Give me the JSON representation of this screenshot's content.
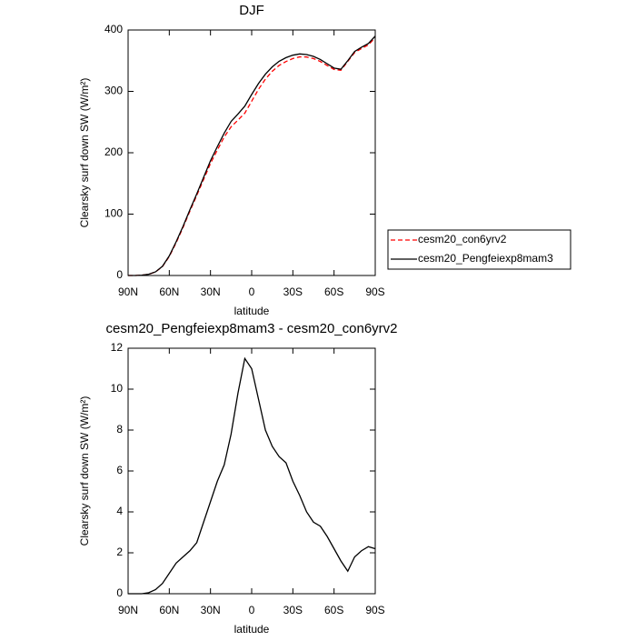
{
  "chart_data": [
    {
      "type": "line",
      "title": "DJF",
      "x_label": "latitude",
      "y_label": "Clearsky surf down SW (W/m²)",
      "x": [
        90,
        85,
        80,
        75,
        70,
        65,
        60,
        55,
        50,
        45,
        40,
        35,
        30,
        25,
        20,
        15,
        10,
        5,
        0,
        -5,
        -10,
        -15,
        -20,
        -25,
        -30,
        -35,
        -40,
        -45,
        -50,
        -55,
        -60,
        -65,
        -70,
        -75,
        -80,
        -85,
        -90
      ],
      "series": [
        {
          "name": "cesm20_con6yrv2",
          "color": "#ff0000",
          "style": "dashed",
          "values": [
            0,
            0,
            0.5,
            2,
            5.8,
            14.5,
            31,
            53.5,
            78.2,
            104.9,
            130.5,
            156.5,
            182.5,
            204.5,
            225.7,
            242.2,
            253.2,
            264.5,
            284,
            303.5,
            320,
            332.8,
            342.3,
            348.6,
            353.5,
            356.2,
            356,
            353.5,
            348.7,
            342.2,
            335.8,
            334.4,
            348.9,
            363.2,
            369.9,
            375.7,
            387.8
          ]
        },
        {
          "name": "cesm20_Pengfeiexp8mam3",
          "color": "#000000",
          "style": "solid",
          "values": [
            0,
            0,
            0.5,
            2,
            6,
            15,
            32,
            55,
            80,
            107,
            133,
            160,
            187,
            210,
            232,
            251,
            263,
            276,
            295,
            313,
            328,
            340,
            349,
            355,
            359,
            361,
            360,
            357,
            352,
            345,
            338,
            336,
            350,
            365,
            372,
            378,
            390
          ]
        }
      ],
      "xlim": [
        90,
        -90
      ],
      "xticks": [
        {
          "value": 90,
          "label": "90N"
        },
        {
          "value": 60,
          "label": "60N"
        },
        {
          "value": 30,
          "label": "30N"
        },
        0,
        {
          "value": -30,
          "label": "30S"
        },
        {
          "value": -60,
          "label": "60S"
        },
        {
          "value": -90,
          "label": "90S"
        }
      ],
      "ylim": [
        0,
        400
      ],
      "yticks": [
        0,
        100,
        200,
        300,
        400
      ],
      "legend": "right"
    },
    {
      "type": "line",
      "title": "cesm20_Pengfeiexp8mam3 - cesm20_con6yrv2",
      "x_label": "latitude",
      "y_label": "Clearsky surf down SW (W/m²)",
      "x": [
        90,
        85,
        80,
        75,
        70,
        65,
        60,
        55,
        50,
        45,
        40,
        35,
        30,
        25,
        20,
        15,
        10,
        5,
        0,
        -5,
        -10,
        -15,
        -20,
        -25,
        -30,
        -35,
        -40,
        -45,
        -50,
        -55,
        -60,
        -65,
        -70,
        -75,
        -80,
        -85,
        -90
      ],
      "series": [
        {
          "color": "#000000",
          "style": "solid",
          "values": [
            0,
            0,
            0,
            0.05,
            0.2,
            0.5,
            1.0,
            1.5,
            1.8,
            2.1,
            2.5,
            3.5,
            4.5,
            5.5,
            6.3,
            7.8,
            9.8,
            11.5,
            11.0,
            9.5,
            8.0,
            7.2,
            6.7,
            6.4,
            5.5,
            4.8,
            4.0,
            3.5,
            3.3,
            2.8,
            2.2,
            1.6,
            1.1,
            1.8,
            2.1,
            2.3,
            2.2
          ]
        }
      ],
      "xlim": [
        90,
        -90
      ],
      "xticks": [
        {
          "value": 90,
          "label": "90N"
        },
        {
          "value": 60,
          "label": "60N"
        },
        {
          "value": 30,
          "label": "30N"
        },
        0,
        {
          "value": -30,
          "label": "30S"
        },
        {
          "value": -60,
          "label": "60S"
        },
        {
          "value": -90,
          "label": "90S"
        }
      ],
      "ylim": [
        0,
        12
      ],
      "yticks": [
        0,
        2,
        4,
        6,
        8,
        10,
        12
      ]
    }
  ]
}
